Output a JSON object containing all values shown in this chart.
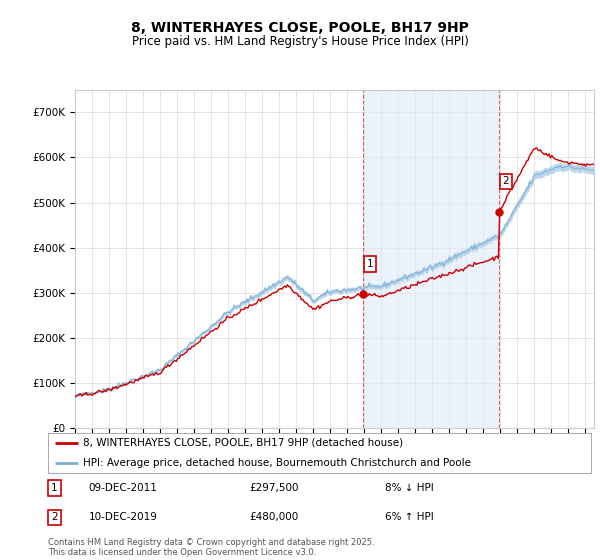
{
  "title": "8, WINTERHAYES CLOSE, POOLE, BH17 9HP",
  "subtitle": "Price paid vs. HM Land Registry's House Price Index (HPI)",
  "ylim": [
    0,
    750000
  ],
  "yticks": [
    0,
    100000,
    200000,
    300000,
    400000,
    500000,
    600000,
    700000
  ],
  "ytick_labels": [
    "£0",
    "£100K",
    "£200K",
    "£300K",
    "£400K",
    "£500K",
    "£600K",
    "£700K"
  ],
  "sale1": {
    "price": 297500,
    "pct": "8% ↓ HPI",
    "date_str": "09-DEC-2011",
    "year": 2011.92
  },
  "sale2": {
    "price": 480000,
    "pct": "6% ↑ HPI",
    "date_str": "10-DEC-2019",
    "year": 2019.92
  },
  "legend_line1": "8, WINTERHAYES CLOSE, POOLE, BH17 9HP (detached house)",
  "legend_line2": "HPI: Average price, detached house, Bournemouth Christchurch and Poole",
  "footer": "Contains HM Land Registry data © Crown copyright and database right 2025.\nThis data is licensed under the Open Government Licence v3.0.",
  "price_color": "#cc0000",
  "hpi_fill_color": "#b8d4ea",
  "hpi_line_color": "#7ab0d4",
  "plot_bg": "#ffffff",
  "grid_color": "#cccccc",
  "shade_color": "#dce8f8",
  "xlim_start": 1995,
  "xlim_end": 2025.5
}
